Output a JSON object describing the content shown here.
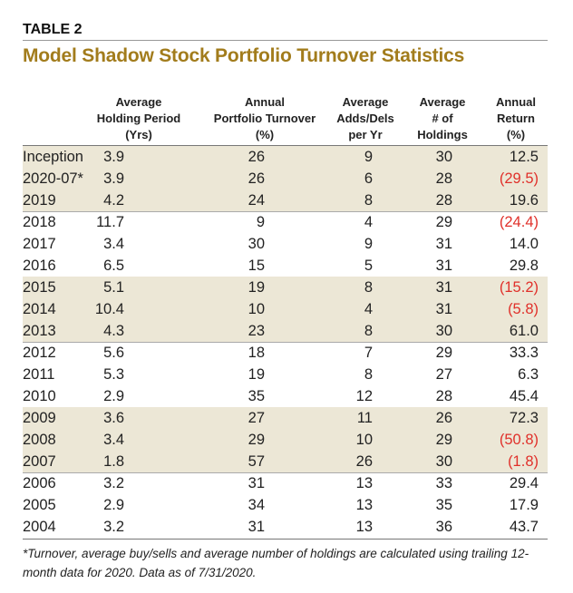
{
  "header": {
    "label": "TABLE 2",
    "title": "Model Shadow Stock Portfolio Turnover Statistics"
  },
  "table": {
    "columns": [
      [
        "Average",
        "Holding Period",
        "(Yrs)"
      ],
      [
        "Annual",
        "Portfolio Turnover",
        "(%)"
      ],
      [
        "Average",
        "Adds/Dels",
        "per Yr"
      ],
      [
        "Average",
        "# of",
        "Holdings"
      ],
      [
        "Annual",
        "Return",
        "(%)"
      ]
    ],
    "rows": [
      [
        "Inception",
        "3.9",
        "26",
        "9",
        "30",
        "12.5"
      ],
      [
        "2020-07*",
        "3.9",
        "26",
        "6",
        "28",
        "(29.5)"
      ],
      [
        "2019",
        "4.2",
        "24",
        "8",
        "28",
        "19.6"
      ],
      [
        "2018",
        "11.7",
        "9",
        "4",
        "29",
        "(24.4)"
      ],
      [
        "2017",
        "3.4",
        "30",
        "9",
        "31",
        "14.0"
      ],
      [
        "2016",
        "6.5",
        "15",
        "5",
        "31",
        "29.8"
      ],
      [
        "2015",
        "5.1",
        "19",
        "8",
        "31",
        "(15.2)"
      ],
      [
        "2014",
        "10.4",
        "10",
        "4",
        "31",
        "(5.8)"
      ],
      [
        "2013",
        "4.3",
        "23",
        "8",
        "30",
        "61.0"
      ],
      [
        "2012",
        "5.6",
        "18",
        "7",
        "29",
        "33.3"
      ],
      [
        "2011",
        "5.3",
        "19",
        "8",
        "27",
        "6.3"
      ],
      [
        "2010",
        "2.9",
        "35",
        "12",
        "28",
        "45.4"
      ],
      [
        "2009",
        "3.6",
        "27",
        "11",
        "26",
        "72.3"
      ],
      [
        "2008",
        "3.4",
        "29",
        "10",
        "29",
        "(50.8)"
      ],
      [
        "2007",
        "1.8",
        "57",
        "26",
        "30",
        "(1.8)"
      ],
      [
        "2006",
        "3.2",
        "31",
        "13",
        "33",
        "29.4"
      ],
      [
        "2005",
        "2.9",
        "34",
        "13",
        "35",
        "17.9"
      ],
      [
        "2004",
        "3.2",
        "31",
        "13",
        "36",
        "43.7"
      ]
    ],
    "shaded_rows": [
      0,
      1,
      2,
      6,
      7,
      8,
      12,
      13,
      14
    ],
    "shade_color": "#ece7d6",
    "negative_color": "#e0302a"
  },
  "footnote": "*Turnover, average buy/sells and average number of holdings are calculated using trailing 12-month data for 2020. Data as of 7/31/2020."
}
